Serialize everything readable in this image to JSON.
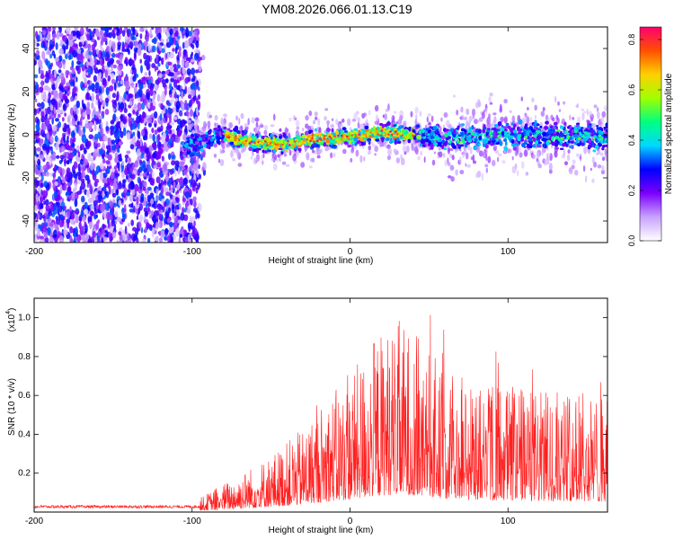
{
  "title": "YM08.2026.066.01.13.C19",
  "chart_data": [
    {
      "type": "heatmap",
      "name": "spectrogram",
      "xlabel": "Height of straight line (km)",
      "ylabel": "Frequency (Hz)",
      "xlim": [
        -200,
        163
      ],
      "ylim": [
        -50,
        50
      ],
      "xticks": [
        -200,
        -100,
        0,
        100
      ],
      "yticks": [
        -40,
        -20,
        0,
        20,
        40
      ],
      "colorbar": {
        "label": "Normalized spectral amplitude",
        "range": [
          0,
          0.85
        ],
        "ticks": [
          "0.0",
          "0.2",
          "0.4",
          "0.6",
          "0.8"
        ],
        "colors": [
          "#ffffff",
          "#c8a2ff",
          "#7b00ff",
          "#0000ff",
          "#00d8ff",
          "#00ff80",
          "#a0ff00",
          "#ffd000",
          "#ff5000",
          "#ff0070"
        ]
      },
      "signal_band": {
        "x_start": -105,
        "x_end": 163,
        "center_freq_by_height": [
          [
            -105,
            -6
          ],
          [
            -80,
            0
          ],
          [
            -60,
            -4
          ],
          [
            -40,
            -4
          ],
          [
            -20,
            -2
          ],
          [
            0,
            -1
          ],
          [
            20,
            1
          ],
          [
            40,
            0
          ],
          [
            60,
            -2
          ],
          [
            80,
            0
          ],
          [
            100,
            0
          ],
          [
            120,
            -1
          ],
          [
            140,
            0
          ],
          [
            163,
            -2
          ]
        ],
        "peak_amplitude_region": [
          -80,
          40
        ]
      },
      "noise_region": [
        -200,
        -95
      ]
    },
    {
      "type": "line",
      "name": "snr",
      "xlabel": "Height of straight line (km)",
      "ylabel": "SNR (10 * v/v)",
      "scale_label": "(x10",
      "scale_exponent": "4",
      "scale_close": ")",
      "xlim": [
        -200,
        163
      ],
      "ylim": [
        0,
        1.1
      ],
      "xticks": [
        -200,
        -100,
        0,
        100
      ],
      "yticks": [
        "0.2",
        "0.4",
        "0.6",
        "0.8",
        "1.0"
      ],
      "color": "#ff2020",
      "envelope": [
        [
          -200,
          0.03
        ],
        [
          -100,
          0.03
        ],
        [
          -90,
          0.06
        ],
        [
          -70,
          0.12
        ],
        [
          -50,
          0.18
        ],
        [
          -30,
          0.26
        ],
        [
          -15,
          0.36
        ],
        [
          0,
          0.42
        ],
        [
          15,
          0.55
        ],
        [
          30,
          0.6
        ],
        [
          45,
          0.55
        ],
        [
          60,
          0.45
        ],
        [
          80,
          0.42
        ],
        [
          100,
          0.4
        ],
        [
          120,
          0.38
        ],
        [
          140,
          0.38
        ],
        [
          163,
          0.36
        ]
      ]
    }
  ]
}
